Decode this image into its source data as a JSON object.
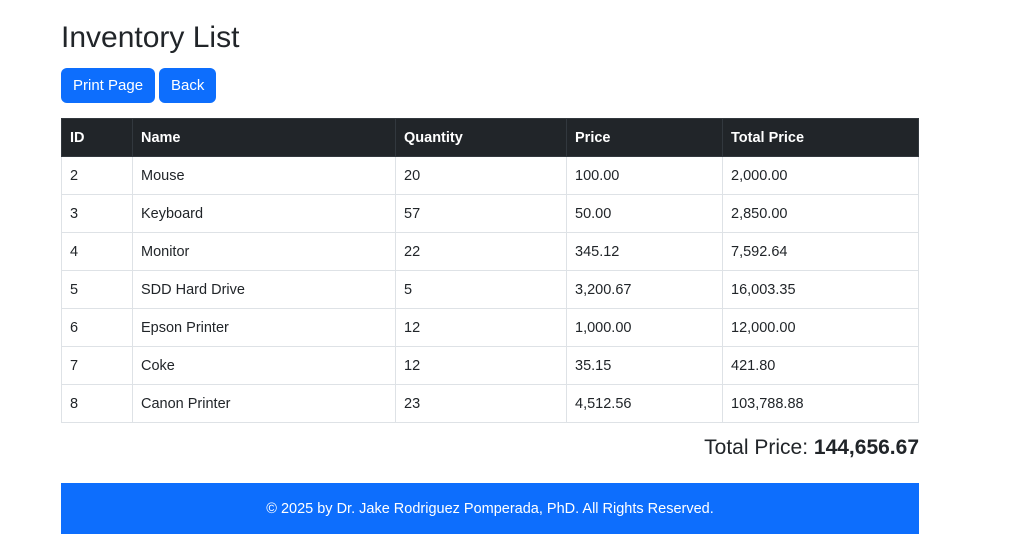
{
  "page": {
    "title": "Inventory List"
  },
  "actions": {
    "print_label": "Print Page",
    "back_label": "Back"
  },
  "table": {
    "headers": [
      "ID",
      "Name",
      "Quantity",
      "Price",
      "Total Price"
    ],
    "rows": [
      [
        "2",
        "Mouse",
        "20",
        "100.00",
        "2,000.00"
      ],
      [
        "3",
        "Keyboard",
        "57",
        "50.00",
        "2,850.00"
      ],
      [
        "4",
        "Monitor",
        "22",
        "345.12",
        "7,592.64"
      ],
      [
        "5",
        "SDD Hard Drive",
        "5",
        "3,200.67",
        "16,003.35"
      ],
      [
        "6",
        "Epson Printer",
        "12",
        "1,000.00",
        "12,000.00"
      ],
      [
        "7",
        "Coke",
        "12",
        "35.15",
        "421.80"
      ],
      [
        "8",
        "Canon Printer",
        "23",
        "4,512.56",
        "103,788.88"
      ]
    ]
  },
  "summary": {
    "label": "Total Price:",
    "value": "144,656.67"
  },
  "footer": {
    "text": "© 2025 by Dr. Jake Rodriguez Pomperada, PhD. All Rights Reserved."
  },
  "colors": {
    "primary": "#0d6efd",
    "table_header": "#212529"
  }
}
